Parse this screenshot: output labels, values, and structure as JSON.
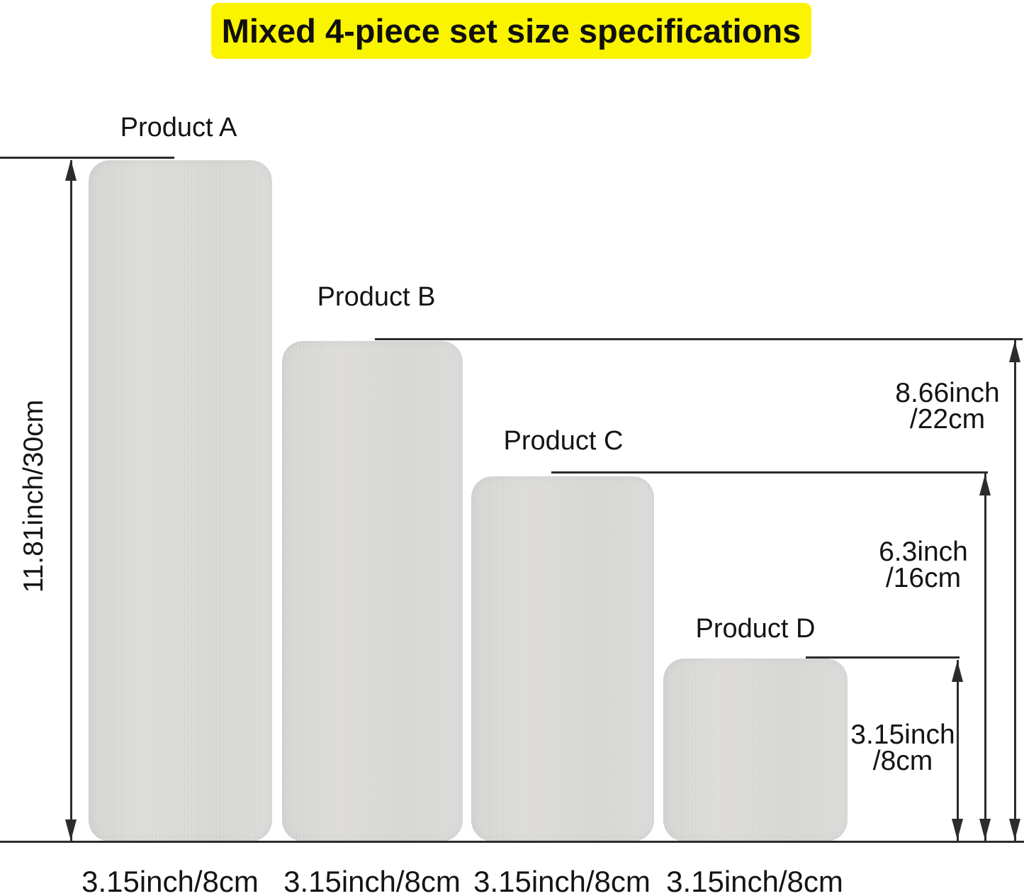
{
  "title": {
    "text": "Mixed 4-piece set size specifications",
    "highlight_color": "#FAF400",
    "text_color": "#101010"
  },
  "colors": {
    "background": "#FFFFFF",
    "panel_fill": "#DADAD8",
    "dimension_line": "#2C2C2C",
    "label_text": "#141414"
  },
  "products": [
    {
      "name": "Product A",
      "height_label": "11.81inch/30cm",
      "width_label": "3.15inch/8cm"
    },
    {
      "name": "Product B",
      "height_line1": "8.66inch",
      "height_line2": "/22cm",
      "width_label": "3.15inch/8cm"
    },
    {
      "name": "Product C",
      "height_line1": "6.3inch",
      "height_line2": "/16cm",
      "width_label": "3.15inch/8cm"
    },
    {
      "name": "Product D",
      "height_line1": "3.15inch",
      "height_line2": "/8cm",
      "width_label": "3.15inch/8cm"
    }
  ]
}
